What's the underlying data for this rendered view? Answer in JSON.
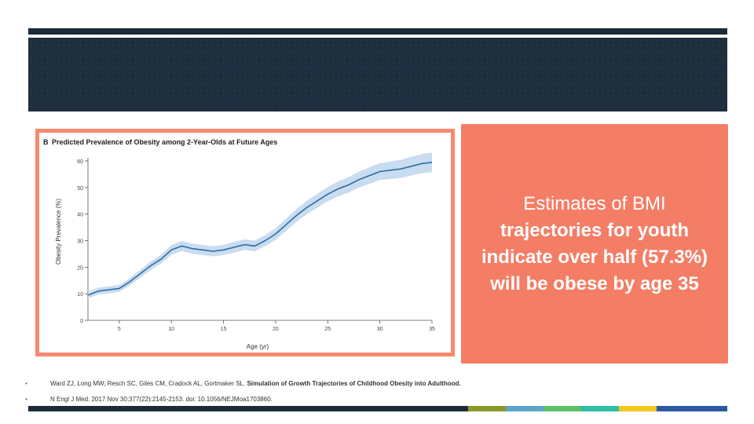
{
  "callout": {
    "line1": "Estimates of BMI",
    "rest": "trajectories for youth indicate over half (57.3%) will be obese by age 35"
  },
  "citation": {
    "line1_authors": "Ward ZJ, Long MW, Resch SC, Giles CM, Cradock AL, Gortmaker SL. ",
    "line1_title": "Simulation of Growth Trajectories of Childhood Obesity into Adulthood.",
    "line2": "N Engl J Med. 2017 Nov 30;377(22):2145-2153. doi: 10.1056/NEJMoa1703860."
  },
  "colors": {
    "accent": "#f47d66",
    "banner": "#1e2e3e",
    "line": "#2e6da4",
    "band": "#c9dcf0",
    "bottom_bar": [
      "#1c2b3a",
      "#8a9a2a",
      "#5aa6c8",
      "#5cc168",
      "#2dbfa6",
      "#f2c81e",
      "#2b5aa3"
    ]
  },
  "chart_data": {
    "type": "line",
    "panel_label": "B",
    "title": "Predicted Prevalence of Obesity among 2-Year-Olds at Future Ages",
    "xlabel": "Age (yr)",
    "ylabel": "Obesity Prevalence (%)",
    "xlim": [
      2,
      35
    ],
    "ylim": [
      0,
      60
    ],
    "xticks": [
      5,
      10,
      15,
      20,
      25,
      30,
      35
    ],
    "yticks": [
      0,
      10,
      20,
      30,
      40,
      50,
      60
    ],
    "grid": false,
    "series": [
      {
        "x": [
          2,
          3,
          4,
          5,
          6,
          7,
          8,
          9,
          10,
          11,
          12,
          13,
          14,
          15,
          16,
          17,
          18,
          19,
          20,
          21,
          22,
          23,
          24,
          25,
          26,
          27,
          28,
          29,
          30,
          31,
          32,
          33,
          34,
          35
        ],
        "y": [
          9.5,
          11,
          11.5,
          12,
          14.5,
          17.5,
          20.5,
          23,
          26.5,
          28,
          27,
          26.5,
          26,
          26.5,
          27.5,
          28.5,
          28,
          30,
          32.5,
          36,
          39.5,
          42.5,
          45,
          47.5,
          49.5,
          51,
          53,
          54.5,
          56,
          56.5,
          57,
          58,
          59,
          59.5
        ],
        "lower": [
          8.3,
          9.7,
          10.2,
          10.7,
          13.1,
          16,
          18.9,
          21.3,
          24.7,
          26.1,
          25.1,
          24.6,
          24.1,
          24.6,
          25.5,
          26.5,
          26,
          27.9,
          30.3,
          33.7,
          37.1,
          40,
          42.4,
          44.8,
          46.7,
          48.1,
          50,
          51.4,
          52.8,
          53.2,
          53.6,
          54.5,
          55.4,
          55.8
        ],
        "upper": [
          10.7,
          12.3,
          12.8,
          13.3,
          15.9,
          19,
          22.1,
          24.7,
          28.3,
          29.9,
          28.9,
          28.4,
          27.9,
          28.4,
          29.5,
          30.5,
          30,
          32.1,
          34.7,
          38.3,
          41.9,
          45,
          47.6,
          50.2,
          52.3,
          53.9,
          56,
          57.6,
          59.2,
          59.8,
          60.4,
          61.5,
          62.6,
          63.2
        ]
      }
    ]
  }
}
